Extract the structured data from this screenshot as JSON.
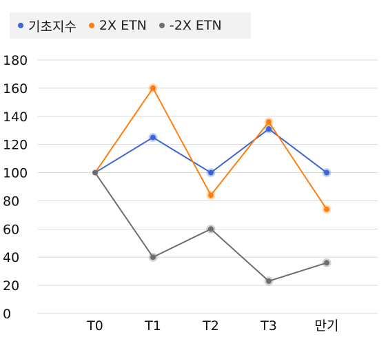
{
  "chart_data": {
    "type": "line",
    "categories": [
      "T0",
      "T1",
      "T2",
      "T3",
      "만기"
    ],
    "series": [
      {
        "name": "기초지수",
        "values": [
          100,
          125,
          100,
          131,
          100
        ],
        "color": "#3a66d6"
      },
      {
        "name": "2X ETN",
        "values": [
          100,
          160,
          84,
          136,
          74
        ],
        "color": "#ff7f0e"
      },
      {
        "name": "-2X ETN",
        "values": [
          100,
          40,
          60,
          23,
          36
        ],
        "color": "#6e6e6e"
      }
    ],
    "yticks": [
      "0",
      "20",
      "40",
      "60",
      "80",
      "100",
      "120",
      "140",
      "160",
      "180"
    ],
    "ylim": [
      0,
      180
    ],
    "grid": true,
    "legend": "top-left",
    "title": "",
    "xlabel": "",
    "ylabel": ""
  }
}
